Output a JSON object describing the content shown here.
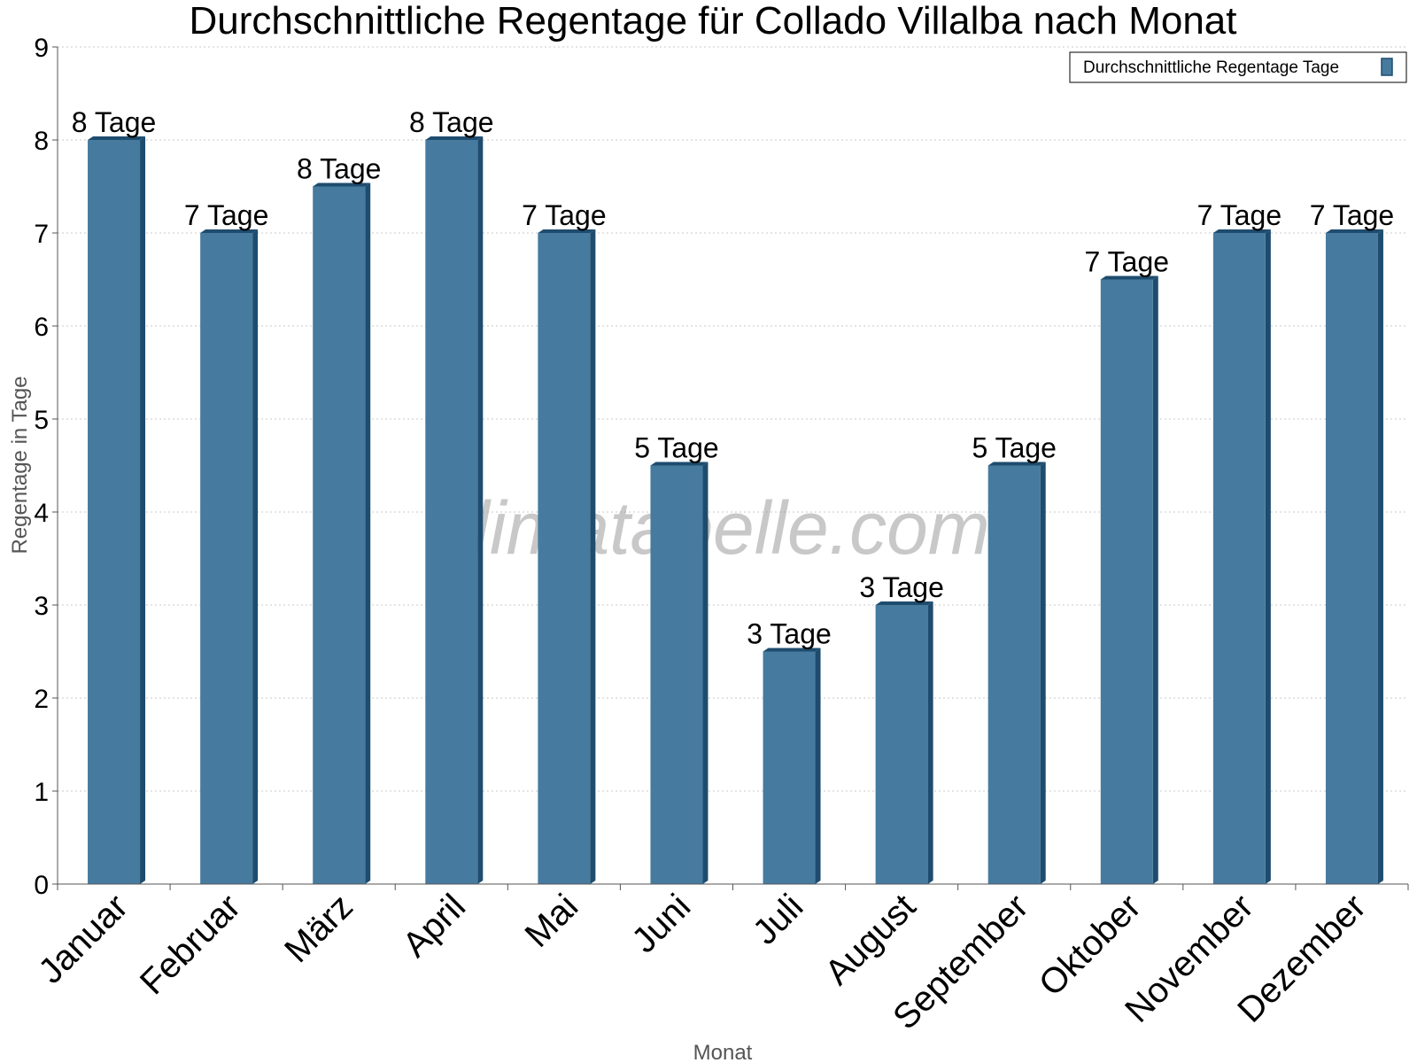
{
  "chart_data": {
    "type": "bar",
    "title": "Durchschnittliche Regentage für Collado Villalba nach Monat",
    "xlabel": "Monat",
    "ylabel": "Regentage in Tage",
    "ylim": [
      0,
      9
    ],
    "yticks": [
      "0",
      "1",
      "2",
      "3",
      "4",
      "5",
      "6",
      "7",
      "8",
      "9"
    ],
    "grid": true,
    "legend_position": "top-right",
    "categories": [
      "Januar",
      "Februar",
      "März",
      "April",
      "Mai",
      "Juni",
      "Juli",
      "August",
      "September",
      "Oktober",
      "November",
      "Dezember"
    ],
    "series": [
      {
        "name": "Durchschnittliche Regentage Tage",
        "values": [
          8,
          7,
          7.5,
          8,
          7,
          4.5,
          2.5,
          3,
          4.5,
          6.5,
          7,
          7
        ],
        "labels": [
          "8 Tage",
          "7 Tage",
          "8 Tage",
          "8 Tage",
          "7 Tage",
          "5 Tage",
          "3 Tage",
          "3 Tage",
          "5 Tage",
          "7 Tage",
          "7 Tage",
          "7 Tage"
        ]
      }
    ],
    "colors": {
      "bar": "#467b9f",
      "bar_side": "#1e4c6e",
      "grid": "#c8c8c8",
      "axis": "#555555"
    }
  },
  "watermark": "klimatabelle.com"
}
